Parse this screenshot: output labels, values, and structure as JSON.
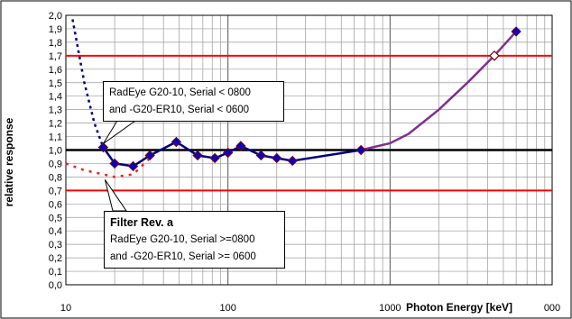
{
  "chart_data": {
    "type": "line",
    "xscale": "log",
    "xlim": [
      10,
      10000
    ],
    "ylim": [
      0,
      2
    ],
    "xticks": [
      10,
      100,
      1000
    ],
    "xtick_labels": [
      "10",
      "100",
      "1000"
    ],
    "xtick_extra_label": "000",
    "yticks": [
      "0,0",
      "0,1",
      "0,2",
      "0,3",
      "0,4",
      "0,5",
      "0,6",
      "0,7",
      "0,8",
      "0,9",
      "1,0",
      "1,1",
      "1,2",
      "1,3",
      "1,4",
      "1,5",
      "1,6",
      "1,7",
      "1,8",
      "1,9",
      "2,0"
    ],
    "xlabel": "Photon Energy [keV]",
    "ylabel": "relative response",
    "grid": true,
    "colors": {
      "main_line": "#00007f",
      "marker_fill": "#0000cc",
      "marker_edge": "#7f0000",
      "purple_line": "#7f2f8f",
      "red_dashed": "#ee2222",
      "limit_line": "#ff0000",
      "reference_line": "#000000"
    },
    "limit_lines": [
      0.7,
      1.7
    ],
    "reference_line": 1.0,
    "series": [
      {
        "style": "main",
        "x": [
          17,
          20,
          26,
          33,
          48,
          65,
          83,
          100,
          120,
          160,
          200,
          250,
          662
        ],
        "y": [
          1.02,
          0.9,
          0.88,
          0.96,
          1.06,
          0.96,
          0.94,
          0.98,
          1.03,
          0.96,
          0.94,
          0.92,
          1.0
        ]
      },
      {
        "style": "blue-dashed",
        "x": [
          11,
          13,
          15,
          17
        ],
        "y": [
          1.97,
          1.5,
          1.2,
          1.02
        ]
      },
      {
        "style": "red-dashed",
        "x": [
          10,
          13,
          17,
          20,
          26,
          33
        ],
        "y": [
          0.9,
          0.85,
          0.82,
          0.8,
          0.82,
          0.94
        ]
      },
      {
        "style": "purple",
        "x": [
          662,
          1000,
          1300,
          2000,
          3000,
          4400,
          6000
        ],
        "y": [
          1.0,
          1.05,
          1.12,
          1.3,
          1.5,
          1.7,
          1.88
        ]
      }
    ],
    "marker_points": {
      "x": [
        17,
        20,
        26,
        33,
        48,
        65,
        83,
        100,
        120,
        160,
        200,
        250,
        662,
        6000
      ],
      "y": [
        1.02,
        0.9,
        0.88,
        0.96,
        1.06,
        0.96,
        0.94,
        0.98,
        1.03,
        0.96,
        0.94,
        0.92,
        1.0,
        1.88
      ]
    },
    "open_markers": {
      "x": [
        4400
      ],
      "y": [
        1.7
      ]
    },
    "annotations": [
      {
        "lines": [
          "RadEye G20-10, Serial < 0800",
          "and -G20-ER10, Serial < 0600"
        ],
        "target": [
          17,
          1.02
        ]
      },
      {
        "title": "Filter Rev. a",
        "lines": [
          "RadEye G20-10, Serial >=0800",
          "and -G20-ER10, Serial >= 0600"
        ],
        "target": [
          17,
          0.8
        ]
      }
    ]
  }
}
